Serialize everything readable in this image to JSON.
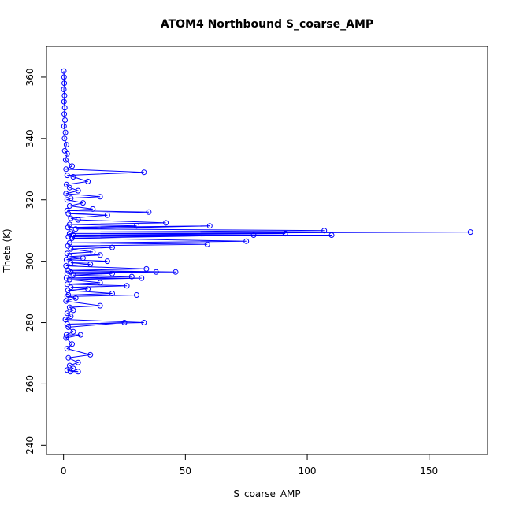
{
  "chart_data": {
    "type": "line",
    "title": "ATOM4 Northbound S_coarse_AMP",
    "xlabel": "S_coarse_AMP",
    "ylabel": "Theta (K)",
    "xlim": [
      -7,
      174
    ],
    "ylim": [
      237,
      370
    ],
    "xticks": [
      "0",
      "50",
      "100",
      "150"
    ],
    "yticks": [
      "240",
      "260",
      "280",
      "300",
      "320",
      "340",
      "360"
    ],
    "grid": false,
    "legend": "none",
    "marker": "open-circle",
    "color": "#0000ff",
    "series": [
      {
        "points": [
          [
            0.1,
            362
          ],
          [
            0.2,
            360
          ],
          [
            0.3,
            358
          ],
          [
            0.1,
            356
          ],
          [
            0.4,
            354
          ],
          [
            0.2,
            352
          ],
          [
            0.5,
            350
          ],
          [
            0.3,
            348
          ],
          [
            0.6,
            346
          ],
          [
            0.2,
            344
          ],
          [
            0.8,
            342
          ],
          [
            0.4,
            340
          ],
          [
            1.2,
            338
          ],
          [
            0.5,
            336
          ],
          [
            1.5,
            335
          ],
          [
            0.9,
            333
          ],
          [
            3.5,
            331
          ],
          [
            1.0,
            330
          ],
          [
            33,
            329
          ],
          [
            1.5,
            328
          ],
          [
            4,
            327.5
          ],
          [
            10,
            326
          ],
          [
            1.2,
            325
          ],
          [
            2.5,
            324
          ],
          [
            6,
            323
          ],
          [
            1.0,
            322
          ],
          [
            15,
            321
          ],
          [
            3,
            320.5
          ],
          [
            1.5,
            320
          ],
          [
            8,
            319
          ],
          [
            2.5,
            318
          ],
          [
            12,
            317
          ],
          [
            1.5,
            316.5
          ],
          [
            35,
            316
          ],
          [
            2.0,
            315.5
          ],
          [
            18,
            315
          ],
          [
            3,
            314
          ],
          [
            6,
            313.5
          ],
          [
            42,
            312.5
          ],
          [
            2.5,
            312
          ],
          [
            30,
            311.5
          ],
          [
            1.8,
            311
          ],
          [
            60,
            311.5
          ],
          [
            5,
            310.5
          ],
          [
            107,
            310
          ],
          [
            3,
            309.5
          ],
          [
            167,
            309.5
          ],
          [
            2.5,
            309
          ],
          [
            91,
            309
          ],
          [
            4,
            308.5
          ],
          [
            110,
            308.5
          ],
          [
            2.0,
            308
          ],
          [
            78,
            308.5
          ],
          [
            3.5,
            307.5
          ],
          [
            75,
            306.5
          ],
          [
            2.5,
            306
          ],
          [
            59,
            305.5
          ],
          [
            1.8,
            305
          ],
          [
            20,
            304.5
          ],
          [
            3,
            304
          ],
          [
            12,
            303
          ],
          [
            1.5,
            302.5
          ],
          [
            15,
            302
          ],
          [
            2.5,
            301.5
          ],
          [
            8,
            301
          ],
          [
            1.2,
            300.5
          ],
          [
            18,
            300
          ],
          [
            3,
            299.5
          ],
          [
            11,
            299
          ],
          [
            1.0,
            298.5
          ],
          [
            34,
            297.5
          ],
          [
            2.0,
            297
          ],
          [
            46,
            296.5
          ],
          [
            3,
            296.5
          ],
          [
            38,
            296.5
          ],
          [
            1.5,
            296
          ],
          [
            20,
            296
          ],
          [
            4,
            295.5
          ],
          [
            28,
            295
          ],
          [
            1.2,
            294.5
          ],
          [
            32,
            294.5
          ],
          [
            2.5,
            294
          ],
          [
            15,
            293
          ],
          [
            1.5,
            292.5
          ],
          [
            26,
            292
          ],
          [
            3,
            291.5
          ],
          [
            10,
            291
          ],
          [
            1.8,
            290.5
          ],
          [
            20,
            289.5
          ],
          [
            2.0,
            289
          ],
          [
            30,
            289
          ],
          [
            1.5,
            288.5
          ],
          [
            5,
            288
          ],
          [
            1.0,
            287
          ],
          [
            15,
            285.5
          ],
          [
            2.5,
            285
          ],
          [
            4,
            284
          ],
          [
            1.5,
            283
          ],
          [
            3,
            282
          ],
          [
            0.8,
            281
          ],
          [
            33,
            280
          ],
          [
            1.5,
            279.5
          ],
          [
            25,
            280
          ],
          [
            2.0,
            278.5
          ],
          [
            4,
            277
          ],
          [
            1.2,
            276
          ],
          [
            7,
            276
          ],
          [
            1.0,
            275
          ],
          [
            3.5,
            273
          ],
          [
            1.5,
            271.5
          ],
          [
            11,
            269.5
          ],
          [
            2,
            268.5
          ],
          [
            6,
            267
          ],
          [
            2.5,
            266
          ],
          [
            4,
            265
          ],
          [
            1.5,
            264.5
          ],
          [
            6,
            264
          ],
          [
            2.8,
            264
          ]
        ]
      }
    ]
  }
}
